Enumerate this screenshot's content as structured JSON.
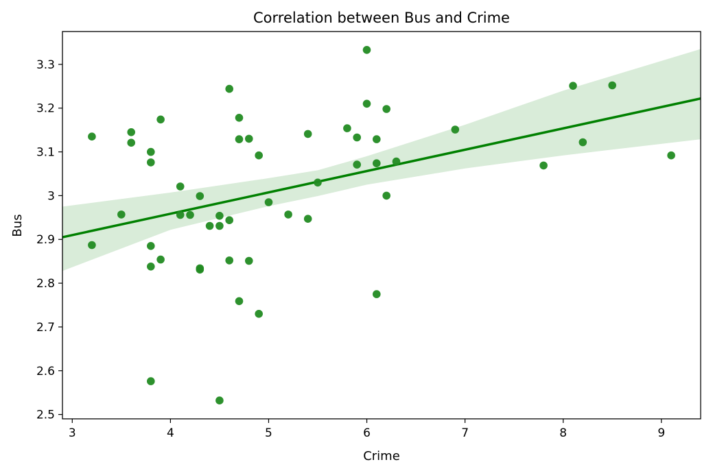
{
  "chart_data": {
    "type": "scatter",
    "title": "Correlation between Bus and Crime",
    "xlabel": "Crime",
    "ylabel": "Bus",
    "xlim": [
      2.9,
      9.4
    ],
    "ylim": [
      2.49,
      3.375
    ],
    "xticks": [
      3,
      4,
      5,
      6,
      7,
      8,
      9
    ],
    "xtick_labels": [
      "3",
      "4",
      "5",
      "6",
      "7",
      "8",
      "9"
    ],
    "yticks": [
      2.5,
      2.6,
      2.7,
      2.8,
      2.9,
      3.0,
      3.1,
      3.2,
      3.3
    ],
    "ytick_labels": [
      "2.5",
      "2.6",
      "2.7",
      "2.8",
      "2.9",
      "3",
      "3.1",
      "3.2",
      "3.3"
    ],
    "grid": false,
    "colors": {
      "points": "#228b22",
      "line": "#008000",
      "band": "#d9ecd9"
    },
    "points": [
      {
        "x": 3.2,
        "y": 3.135
      },
      {
        "x": 3.2,
        "y": 2.887
      },
      {
        "x": 3.5,
        "y": 2.957
      },
      {
        "x": 3.6,
        "y": 3.145
      },
      {
        "x": 3.6,
        "y": 3.121
      },
      {
        "x": 3.8,
        "y": 3.1
      },
      {
        "x": 3.8,
        "y": 3.076
      },
      {
        "x": 3.8,
        "y": 2.885
      },
      {
        "x": 3.8,
        "y": 2.838
      },
      {
        "x": 3.8,
        "y": 2.576
      },
      {
        "x": 3.9,
        "y": 3.174
      },
      {
        "x": 3.9,
        "y": 2.854
      },
      {
        "x": 4.1,
        "y": 3.021
      },
      {
        "x": 4.1,
        "y": 2.956
      },
      {
        "x": 4.2,
        "y": 2.956
      },
      {
        "x": 4.3,
        "y": 2.999
      },
      {
        "x": 4.3,
        "y": 2.834
      },
      {
        "x": 4.3,
        "y": 2.831
      },
      {
        "x": 4.4,
        "y": 2.931
      },
      {
        "x": 4.5,
        "y": 2.954
      },
      {
        "x": 4.5,
        "y": 2.931
      },
      {
        "x": 4.5,
        "y": 2.532
      },
      {
        "x": 4.6,
        "y": 3.244
      },
      {
        "x": 4.6,
        "y": 2.944
      },
      {
        "x": 4.6,
        "y": 2.852
      },
      {
        "x": 4.7,
        "y": 3.178
      },
      {
        "x": 4.7,
        "y": 3.129
      },
      {
        "x": 4.7,
        "y": 2.759
      },
      {
        "x": 4.8,
        "y": 3.13
      },
      {
        "x": 4.8,
        "y": 2.851
      },
      {
        "x": 4.9,
        "y": 3.092
      },
      {
        "x": 4.9,
        "y": 2.73
      },
      {
        "x": 5.0,
        "y": 2.985
      },
      {
        "x": 5.2,
        "y": 2.957
      },
      {
        "x": 5.4,
        "y": 3.141
      },
      {
        "x": 5.4,
        "y": 2.947
      },
      {
        "x": 5.5,
        "y": 3.03
      },
      {
        "x": 5.8,
        "y": 3.154
      },
      {
        "x": 5.9,
        "y": 3.133
      },
      {
        "x": 5.9,
        "y": 3.071
      },
      {
        "x": 6.0,
        "y": 3.333
      },
      {
        "x": 6.0,
        "y": 3.21
      },
      {
        "x": 6.1,
        "y": 3.129
      },
      {
        "x": 6.1,
        "y": 3.074
      },
      {
        "x": 6.1,
        "y": 2.775
      },
      {
        "x": 6.2,
        "y": 3.198
      },
      {
        "x": 6.2,
        "y": 3.0
      },
      {
        "x": 6.3,
        "y": 3.078
      },
      {
        "x": 6.9,
        "y": 3.151
      },
      {
        "x": 7.8,
        "y": 3.069
      },
      {
        "x": 8.1,
        "y": 3.251
      },
      {
        "x": 8.2,
        "y": 3.122
      },
      {
        "x": 8.5,
        "y": 3.252
      },
      {
        "x": 9.1,
        "y": 3.092
      }
    ],
    "regression_line": {
      "x": [
        2.9,
        9.4
      ],
      "y": [
        2.905,
        3.222
      ]
    },
    "confidence_band": {
      "x": [
        2.9,
        4.0,
        5.0,
        5.5,
        6.0,
        7.0,
        8.0,
        9.4
      ],
      "lower": [
        2.828,
        2.922,
        2.976,
        2.999,
        3.025,
        3.062,
        3.092,
        3.129
      ],
      "upper": [
        2.975,
        3.007,
        3.04,
        3.058,
        3.09,
        3.162,
        3.24,
        3.335
      ]
    }
  }
}
